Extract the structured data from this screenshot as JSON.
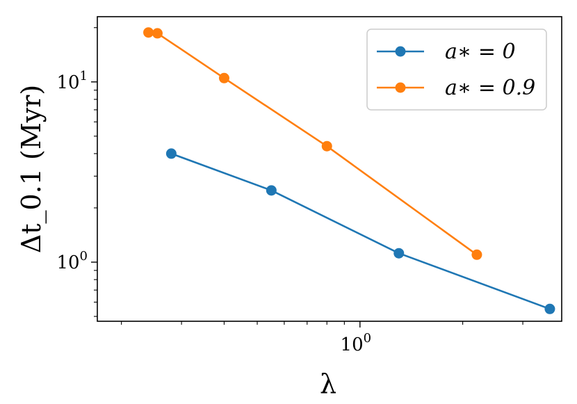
{
  "chart_data": {
    "type": "line",
    "title": "",
    "xlabel": "λ",
    "ylabel": "Δt_0.1 (Myr)",
    "xscale": "log",
    "yscale": "log",
    "xlim": [
      0.17,
      3.9
    ],
    "ylim": [
      0.47,
      23
    ],
    "x_tick_labels": [
      {
        "value": 1,
        "base": "10",
        "exp": "0"
      }
    ],
    "y_tick_labels": [
      {
        "value": 1,
        "base": "10",
        "exp": "0"
      },
      {
        "value": 10,
        "base": "10",
        "exp": "1"
      }
    ],
    "grid": false,
    "legend_position": "top-right",
    "series": [
      {
        "name": "a∗ = 0",
        "color": "#1f77b4",
        "marker": "circle",
        "x": [
          0.28,
          0.55,
          1.3,
          3.6
        ],
        "y": [
          4.0,
          2.5,
          1.12,
          0.55
        ]
      },
      {
        "name": "a∗ = 0.9",
        "color": "#ff7f0e",
        "marker": "circle",
        "x": [
          0.24,
          0.255,
          0.4,
          0.8,
          2.2
        ],
        "y": [
          18.8,
          18.6,
          10.5,
          4.4,
          1.1
        ]
      }
    ]
  }
}
